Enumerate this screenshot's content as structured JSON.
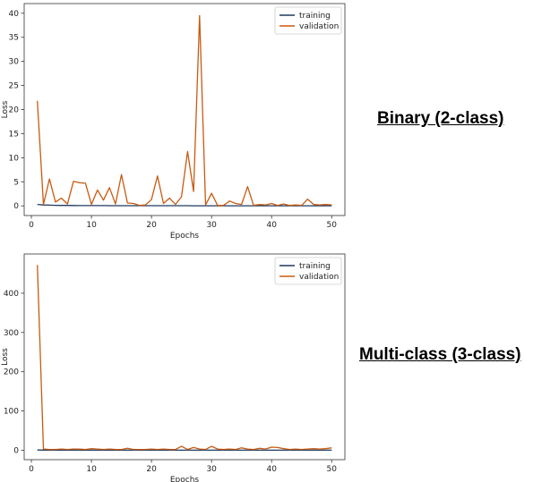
{
  "labels": {
    "binary": "Binary (2-class)",
    "multiclass": "Multi-class (3-class)"
  },
  "chart_data": [
    {
      "type": "line",
      "title": "",
      "xlabel": "Epochs",
      "ylabel": "Loss",
      "xlim": [
        -1.2,
        52.2
      ],
      "ylim": [
        -2.0,
        42.0
      ],
      "xticks": [
        0,
        10,
        20,
        30,
        40,
        50
      ],
      "yticks": [
        0,
        5,
        10,
        15,
        20,
        25,
        30,
        35,
        40
      ],
      "legend": "top-right",
      "grid": false,
      "series": [
        {
          "name": "training",
          "color": "#1f3a5f",
          "x": [
            1,
            2,
            3,
            4,
            5,
            6,
            7,
            8,
            9,
            10,
            11,
            12,
            13,
            14,
            15,
            16,
            17,
            18,
            19,
            20,
            21,
            22,
            23,
            24,
            25,
            26,
            27,
            28,
            29,
            30,
            31,
            32,
            33,
            34,
            35,
            36,
            37,
            38,
            39,
            40,
            41,
            42,
            43,
            44,
            45,
            46,
            47,
            48,
            49,
            50
          ],
          "y": [
            0.3,
            0.2,
            0.15,
            0.12,
            0.1,
            0.09,
            0.08,
            0.07,
            0.07,
            0.06,
            0.06,
            0.06,
            0.05,
            0.05,
            0.05,
            0.05,
            0.05,
            0.04,
            0.04,
            0.04,
            0.04,
            0.04,
            0.04,
            0.04,
            0.04,
            0.04,
            0.03,
            0.03,
            0.03,
            0.03,
            0.03,
            0.03,
            0.03,
            0.03,
            0.03,
            0.03,
            0.03,
            0.03,
            0.02,
            0.02,
            0.02,
            0.02,
            0.02,
            0.02,
            0.02,
            0.02,
            0.02,
            0.02,
            0.02,
            0.02
          ]
        },
        {
          "name": "validation",
          "color": "#c85a12",
          "x": [
            1,
            2,
            3,
            4,
            5,
            6,
            7,
            8,
            9,
            10,
            11,
            12,
            13,
            14,
            15,
            16,
            17,
            18,
            19,
            20,
            21,
            22,
            23,
            24,
            25,
            26,
            27,
            28,
            29,
            30,
            31,
            32,
            33,
            34,
            35,
            36,
            37,
            38,
            39,
            40,
            41,
            42,
            43,
            44,
            45,
            46,
            47,
            48,
            49,
            50
          ],
          "y": [
            21.8,
            0.3,
            5.6,
            0.8,
            1.6,
            0.4,
            5.1,
            4.8,
            4.7,
            0.3,
            3.3,
            1.2,
            3.8,
            0.4,
            6.5,
            0.6,
            0.5,
            0.1,
            0.2,
            1.3,
            6.2,
            0.5,
            1.6,
            0.3,
            1.9,
            11.3,
            3.0,
            39.5,
            0.2,
            2.6,
            0.1,
            0.1,
            1.0,
            0.5,
            0.3,
            4.0,
            0.1,
            0.3,
            0.2,
            0.5,
            0.1,
            0.4,
            0.1,
            0.2,
            0.1,
            1.4,
            0.3,
            0.2,
            0.3,
            0.2
          ]
        }
      ]
    },
    {
      "type": "line",
      "title": "",
      "xlabel": "Epochs",
      "ylabel": "Loss",
      "xlim": [
        -1.2,
        52.2
      ],
      "ylim": [
        -24.0,
        500.0
      ],
      "xticks": [
        0,
        10,
        20,
        30,
        40,
        50
      ],
      "yticks": [
        0,
        100,
        200,
        300,
        400
      ],
      "legend": "top-right",
      "grid": false,
      "series": [
        {
          "name": "training",
          "color": "#1f3a5f",
          "x": [
            1,
            2,
            3,
            4,
            5,
            6,
            7,
            8,
            9,
            10,
            11,
            12,
            13,
            14,
            15,
            16,
            17,
            18,
            19,
            20,
            21,
            22,
            23,
            24,
            25,
            26,
            27,
            28,
            29,
            30,
            31,
            32,
            33,
            34,
            35,
            36,
            37,
            38,
            39,
            40,
            41,
            42,
            43,
            44,
            45,
            46,
            47,
            48,
            49,
            50
          ],
          "y": [
            0.5,
            0.4,
            0.4,
            0.3,
            0.3,
            0.3,
            0.3,
            0.2,
            0.2,
            0.2,
            0.2,
            0.2,
            0.2,
            0.2,
            0.2,
            0.2,
            0.2,
            0.1,
            0.1,
            0.1,
            0.1,
            0.1,
            0.1,
            0.1,
            0.1,
            0.1,
            0.1,
            0.1,
            0.1,
            0.1,
            0.1,
            0.1,
            0.1,
            0.1,
            0.1,
            0.1,
            0.1,
            0.1,
            0.1,
            0.1,
            0.1,
            0.1,
            0.1,
            0.1,
            0.1,
            0.1,
            0.1,
            0.1,
            0.1,
            0.1
          ]
        },
        {
          "name": "validation",
          "color": "#c85a12",
          "x": [
            1,
            2,
            3,
            4,
            5,
            6,
            7,
            8,
            9,
            10,
            11,
            12,
            13,
            14,
            15,
            16,
            17,
            18,
            19,
            20,
            21,
            22,
            23,
            24,
            25,
            26,
            27,
            28,
            29,
            30,
            31,
            32,
            33,
            34,
            35,
            36,
            37,
            38,
            39,
            40,
            41,
            42,
            43,
            44,
            45,
            46,
            47,
            48,
            49,
            50
          ],
          "y": [
            472,
            3,
            2,
            2,
            3,
            2,
            3,
            3,
            2,
            4,
            3,
            2,
            3,
            2,
            2,
            5,
            2,
            2,
            2,
            3,
            2,
            3,
            2,
            2,
            10,
            2,
            7,
            3,
            2,
            10,
            3,
            2,
            3,
            2,
            6,
            3,
            2,
            5,
            3,
            8,
            7,
            4,
            2,
            3,
            2,
            3,
            4,
            3,
            4,
            6
          ]
        }
      ]
    }
  ]
}
